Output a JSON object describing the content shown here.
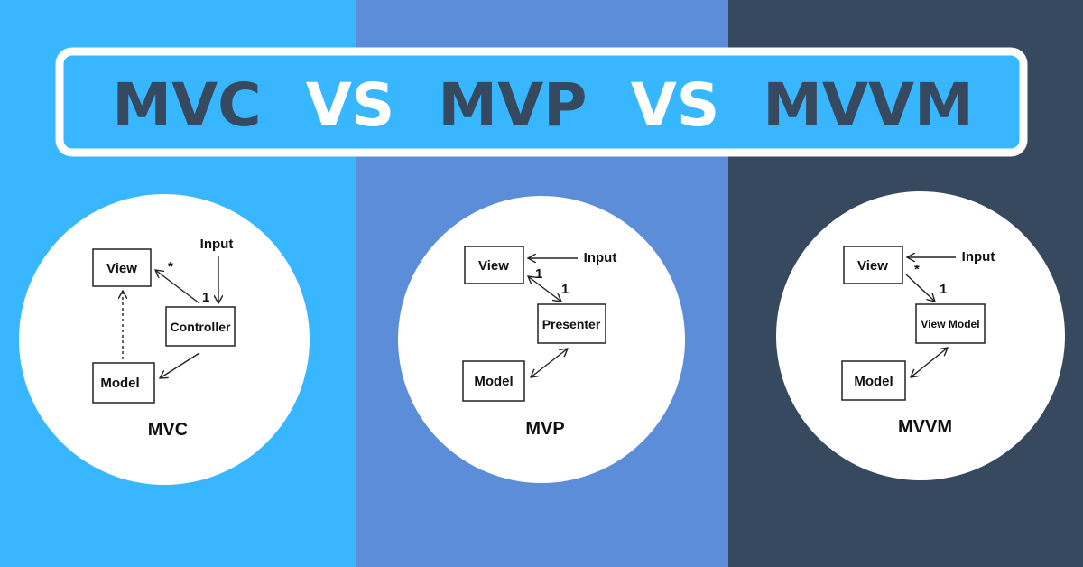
{
  "colors": {
    "left_bg": "#38b6ff",
    "middle_bg": "#5b8dd9",
    "right_bg": "#36495e",
    "title_dark": "#36495e",
    "title_light": "#ffffff"
  },
  "title": {
    "part1": "MVC",
    "vs1": "VS",
    "part2": "MVP",
    "vs2": "VS",
    "part3": "MVVM"
  },
  "mvc": {
    "view": "View",
    "controller": "Controller",
    "model": "Model",
    "input": "Input",
    "star": "*",
    "one": "1",
    "caption": "MVC"
  },
  "mvp": {
    "view": "View",
    "presenter": "Presenter",
    "model": "Model",
    "input": "Input",
    "one_a": "1",
    "one_b": "1",
    "caption": "MVP"
  },
  "mvvm": {
    "view": "View",
    "view_model": "View Model",
    "model": "Model",
    "input": "Input",
    "star": "*",
    "one": "1",
    "caption": "MVVM"
  }
}
